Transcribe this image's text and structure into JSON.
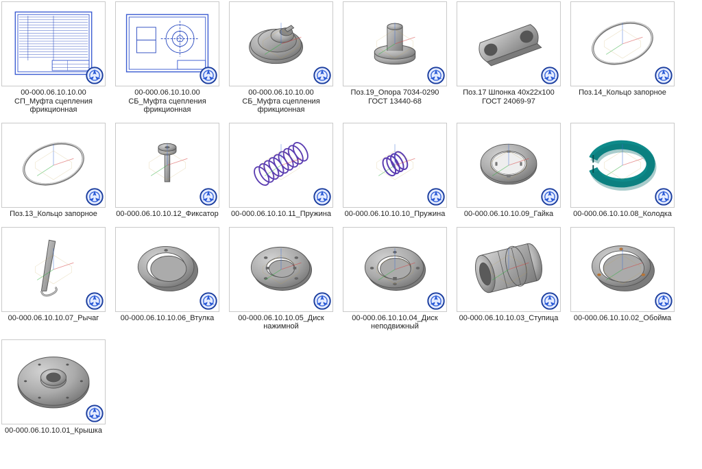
{
  "thumbnail_size": {
    "w": 152,
    "h": 124
  },
  "colors": {
    "border": "#c9c9c9",
    "bg": "#ffffff",
    "label": "#222222",
    "metal_light": "#d2d2d2",
    "metal_mid": "#ababab",
    "metal_dark": "#7b7b7b",
    "metal_edge": "#555555",
    "teal": "#0e8a8a",
    "blue_frame": "#3a5bd1",
    "blue_line": "#2c4cc0",
    "spring_purple": "#5b3db1",
    "axis_red": "#d43a3a",
    "axis_green": "#2fae3f",
    "axis_blue": "#3a6bd4",
    "badge_outer": "#1a3d9e",
    "badge_inner": "#2b5bd6",
    "badge_fill": "#e5ecff"
  },
  "items": [
    {
      "kind": "doc_table",
      "label": "00-000.06.10.10.00 СП_Муфта сцепления фрикционная"
    },
    {
      "kind": "doc_drawing",
      "label": "00-000.06.10.10.00 СБ_Муфта сцепления фрикционная"
    },
    {
      "kind": "clutch_asm",
      "label": "00-000.06.10.10.00 СБ_Муфта сцепления фрикционная",
      "axes": true
    },
    {
      "kind": "shaft_step",
      "label": "Поз.19_Опора 7034-0290 ГОСТ 13440-68",
      "axes": true
    },
    {
      "kind": "link_plate",
      "label": "Поз.17 Шпонка 40x22x100 ГОСТ 24069-97",
      "axes": false
    },
    {
      "kind": "thin_ring",
      "label": "Поз.14_Кольцо запорное",
      "axes": true
    },
    {
      "kind": "thin_ring",
      "label": "Поз.13_Кольцо запорное",
      "axes": true
    },
    {
      "kind": "fixator",
      "label": "00-000.06.10.10.12_Фиксатор",
      "axes": true
    },
    {
      "kind": "spring_long",
      "label": "00-000.06.10.10.11_Пружина",
      "axes": true
    },
    {
      "kind": "spring_short",
      "label": "00-000.06.10.10.10_Пружина",
      "axes": true
    },
    {
      "kind": "lock_nut",
      "label": "00-000.06.10.10.09_Гайка",
      "axes": true
    },
    {
      "kind": "brake_band",
      "label": "00-000.06.10.10.08_Колодка",
      "axes": true
    },
    {
      "kind": "lever",
      "label": "00-000.06.10.10.07_Рычаг",
      "axes": true
    },
    {
      "kind": "bushing",
      "label": "00-000.06.10.10.06_Втулка",
      "axes": false
    },
    {
      "kind": "press_disc",
      "label": "00-000.06.10.10.05_Диск нажимной",
      "axes": true
    },
    {
      "kind": "fixed_disc",
      "label": "00-000.06.10.10.04_Диск неподвижный",
      "axes": true
    },
    {
      "kind": "hub",
      "label": "00-000.06.10.10.03_Ступица",
      "axes": true
    },
    {
      "kind": "cage_ring",
      "label": "00-000.06.10.10.02_Обойма",
      "axes": true
    },
    {
      "kind": "cover",
      "label": "00-000.06.10.10.01_Крышка",
      "axes": false
    }
  ]
}
